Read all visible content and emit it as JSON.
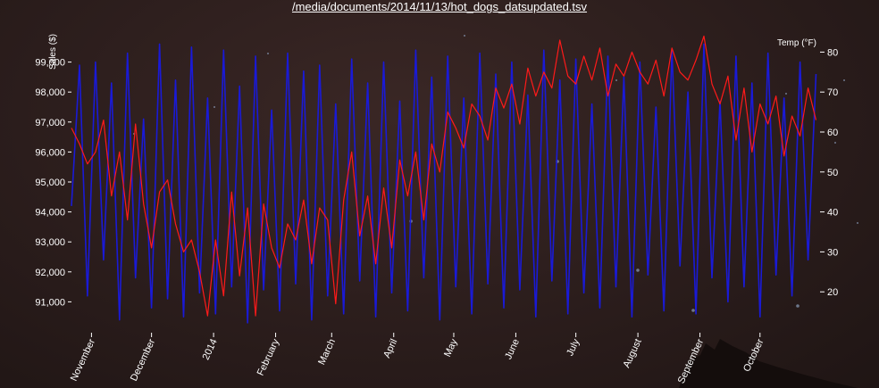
{
  "title": "/media/documents/2014/11/13/hot_dogs_datsupdated.tsv",
  "colors": {
    "background": "#2b1d1c",
    "sales_line": "#1a1ad6",
    "temp_line": "#ff1a1a",
    "text": "#ffffff"
  },
  "chart_data": {
    "type": "line",
    "title": "/media/documents/2014/11/13/hot_dogs_datsupdated.tsv",
    "ylabel_left": "Sales ($)",
    "ylabel_right": "Temp (°F)",
    "x_ticks": [
      "November",
      "December",
      "2014",
      "February",
      "March",
      "April",
      "May",
      "June",
      "July",
      "August",
      "September",
      "October"
    ],
    "x_range": [
      "2013-10-22",
      "2014-10-31"
    ],
    "y_left": {
      "ticks": [
        "91,000",
        "92,000",
        "93,000",
        "94,000",
        "95,000",
        "96,000",
        "97,000",
        "98,000",
        "99,000"
      ],
      "tick_values": [
        91000,
        92000,
        93000,
        94000,
        95000,
        96000,
        97000,
        98000,
        99000
      ],
      "range": [
        90000,
        100000
      ]
    },
    "y_right": {
      "ticks": [
        "20",
        "30",
        "40",
        "50",
        "60",
        "70",
        "80"
      ],
      "tick_values": [
        20,
        30,
        40,
        50,
        60,
        70,
        80
      ],
      "range": [
        10,
        85
      ]
    },
    "grid": false,
    "legend": "none",
    "series": [
      {
        "axis": "left",
        "x": [
          "2013-10-22",
          "2013-10-26",
          "2013-10-30",
          "2013-11-03",
          "2013-11-07",
          "2013-11-11",
          "2013-11-15",
          "2013-11-19",
          "2013-11-23",
          "2013-11-27",
          "2013-12-01",
          "2013-12-05",
          "2013-12-09",
          "2013-12-13",
          "2013-12-17",
          "2013-12-21",
          "2013-12-25",
          "2013-12-29",
          "2014-01-02",
          "2014-01-06",
          "2014-01-10",
          "2014-01-14",
          "2014-01-18",
          "2014-01-22",
          "2014-01-26",
          "2014-01-30",
          "2014-02-03",
          "2014-02-07",
          "2014-02-11",
          "2014-02-15",
          "2014-02-19",
          "2014-02-23",
          "2014-02-27",
          "2014-03-03",
          "2014-03-07",
          "2014-03-11",
          "2014-03-15",
          "2014-03-19",
          "2014-03-23",
          "2014-03-27",
          "2014-03-31",
          "2014-04-04",
          "2014-04-08",
          "2014-04-12",
          "2014-04-16",
          "2014-04-20",
          "2014-04-24",
          "2014-04-28",
          "2014-05-02",
          "2014-05-06",
          "2014-05-10",
          "2014-05-14",
          "2014-05-18",
          "2014-05-22",
          "2014-05-26",
          "2014-05-30",
          "2014-06-03",
          "2014-06-07",
          "2014-06-11",
          "2014-06-15",
          "2014-06-19",
          "2014-06-23",
          "2014-06-27",
          "2014-07-01",
          "2014-07-05",
          "2014-07-09",
          "2014-07-13",
          "2014-07-17",
          "2014-07-21",
          "2014-07-25",
          "2014-07-29",
          "2014-08-02",
          "2014-08-06",
          "2014-08-10",
          "2014-08-14",
          "2014-08-18",
          "2014-08-22",
          "2014-08-26",
          "2014-08-30",
          "2014-09-03",
          "2014-09-07",
          "2014-09-11",
          "2014-09-15",
          "2014-09-19",
          "2014-09-23",
          "2014-09-27",
          "2014-10-01",
          "2014-10-05",
          "2014-10-09",
          "2014-10-13",
          "2014-10-17",
          "2014-10-21",
          "2014-10-25",
          "2014-10-29"
        ],
        "values": [
          94200,
          98900,
          91200,
          99000,
          92400,
          98300,
          90400,
          99300,
          91800,
          97100,
          90800,
          99600,
          91100,
          98400,
          90500,
          99500,
          91300,
          97800,
          90600,
          99400,
          91500,
          98200,
          90300,
          99200,
          91400,
          97400,
          90700,
          99300,
          91600,
          98700,
          90400,
          98900,
          91200,
          97600,
          90600,
          99100,
          91700,
          98300,
          90500,
          99000,
          91300,
          97700,
          90700,
          99400,
          91800,
          98500,
          90400,
          99200,
          91500,
          97800,
          90600,
          99300,
          91600,
          98600,
          90800,
          99000,
          91400,
          97900,
          90500,
          99400,
          91700,
          98400,
          90600,
          99100,
          91300,
          97600,
          90800,
          99200,
          91500,
          98500,
          90500,
          99000,
          91900,
          97500,
          90700,
          99400,
          92200,
          98000,
          90600,
          99600,
          91800,
          97700,
          91000,
          99200,
          91500,
          98300,
          90500,
          99300,
          91900,
          97800,
          91200,
          99000,
          92400,
          98600
        ]
      },
      {
        "axis": "right",
        "x": [
          "2013-10-22",
          "2013-10-26",
          "2013-10-30",
          "2013-11-03",
          "2013-11-07",
          "2013-11-11",
          "2013-11-15",
          "2013-11-19",
          "2013-11-23",
          "2013-11-27",
          "2013-12-01",
          "2013-12-05",
          "2013-12-09",
          "2013-12-13",
          "2013-12-17",
          "2013-12-21",
          "2013-12-25",
          "2013-12-29",
          "2014-01-02",
          "2014-01-06",
          "2014-01-10",
          "2014-01-14",
          "2014-01-18",
          "2014-01-22",
          "2014-01-26",
          "2014-01-30",
          "2014-02-03",
          "2014-02-07",
          "2014-02-11",
          "2014-02-15",
          "2014-02-19",
          "2014-02-23",
          "2014-02-27",
          "2014-03-03",
          "2014-03-07",
          "2014-03-11",
          "2014-03-15",
          "2014-03-19",
          "2014-03-23",
          "2014-03-27",
          "2014-03-31",
          "2014-04-04",
          "2014-04-08",
          "2014-04-12",
          "2014-04-16",
          "2014-04-20",
          "2014-04-24",
          "2014-04-28",
          "2014-05-02",
          "2014-05-06",
          "2014-05-10",
          "2014-05-14",
          "2014-05-18",
          "2014-05-22",
          "2014-05-26",
          "2014-05-30",
          "2014-06-03",
          "2014-06-07",
          "2014-06-11",
          "2014-06-15",
          "2014-06-19",
          "2014-06-23",
          "2014-06-27",
          "2014-07-01",
          "2014-07-05",
          "2014-07-09",
          "2014-07-13",
          "2014-07-17",
          "2014-07-21",
          "2014-07-25",
          "2014-07-29",
          "2014-08-02",
          "2014-08-06",
          "2014-08-10",
          "2014-08-14",
          "2014-08-18",
          "2014-08-22",
          "2014-08-26",
          "2014-08-30",
          "2014-09-03",
          "2014-09-07",
          "2014-09-11",
          "2014-09-15",
          "2014-09-19",
          "2014-09-23",
          "2014-09-27",
          "2014-10-01",
          "2014-10-05",
          "2014-10-09",
          "2014-10-13",
          "2014-10-17",
          "2014-10-21",
          "2014-10-25",
          "2014-10-29"
        ],
        "values": [
          61,
          57,
          52,
          55,
          63,
          44,
          55,
          38,
          62,
          42,
          31,
          45,
          48,
          37,
          30,
          33,
          25,
          14,
          33,
          19,
          45,
          24,
          41,
          14,
          42,
          31,
          26,
          37,
          33,
          43,
          27,
          41,
          38,
          17,
          43,
          55,
          34,
          44,
          27,
          46,
          31,
          53,
          44,
          55,
          38,
          57,
          50,
          65,
          61,
          56,
          67,
          64,
          58,
          71,
          66,
          72,
          62,
          76,
          69,
          75,
          71,
          83,
          74,
          72,
          79,
          73,
          81,
          69,
          77,
          74,
          80,
          75,
          72,
          78,
          69,
          81,
          75,
          73,
          78,
          84,
          72,
          67,
          74,
          58,
          71,
          55,
          67,
          62,
          69,
          54,
          64,
          59,
          71,
          63
        ]
      }
    ]
  }
}
